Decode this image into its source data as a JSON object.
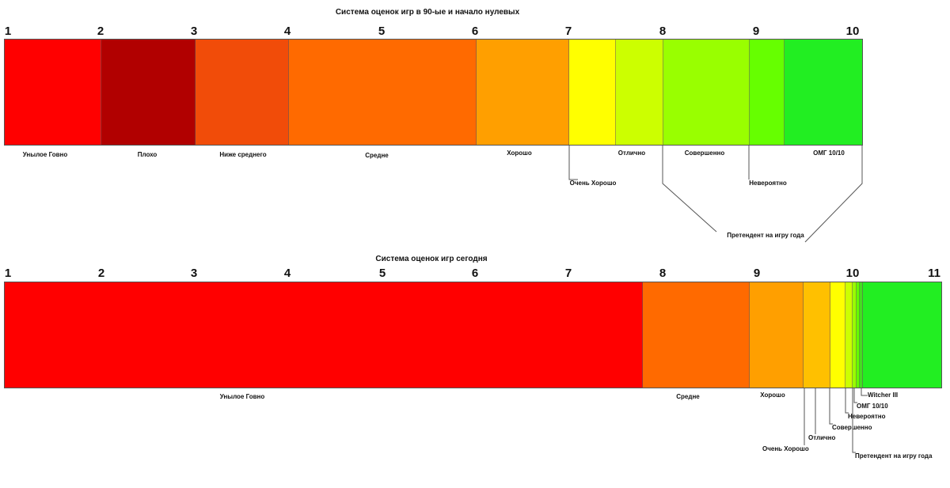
{
  "diagram_data": {
    "top": {
      "title": "Система оценок игр в 90-ые и начало нулевых",
      "scale": [
        "1",
        "2",
        "3",
        "4",
        "5",
        "6",
        "7",
        "8",
        "9",
        "10"
      ],
      "segments": [
        {
          "label": "Унылое Говно",
          "color": "#ff0000"
        },
        {
          "label": "Плохо",
          "color": "#b10000"
        },
        {
          "label": "Ниже среднего",
          "color": "#f14c09"
        },
        {
          "label": "Средне",
          "color": "#ff6a00"
        },
        {
          "label": "Хорошо",
          "color": "#ff9f00"
        },
        {
          "label": "Очень Хорошо",
          "color": "#ffff00"
        },
        {
          "label": "Отлично",
          "color": "#ccff00"
        },
        {
          "label": "Совершенно",
          "color": "#99ff00"
        },
        {
          "label": "Невероятно",
          "color": "#66ff00"
        },
        {
          "label": "ОМГ 10/10",
          "color": "#22ee22"
        }
      ],
      "bracket_label": "Претендент на игру года"
    },
    "bottom": {
      "title": "Система оценок игр сегодня",
      "scale": [
        "1",
        "2",
        "3",
        "4",
        "5",
        "6",
        "7",
        "8",
        "9",
        "10",
        "11"
      ],
      "segments": [
        {
          "label": "Унылое Говно",
          "color": "#ff0000"
        },
        {
          "label": "Средне",
          "color": "#ff6a00"
        },
        {
          "label": "Хорошо",
          "color": "#ff9f00"
        },
        {
          "label": "Очень Хорошо",
          "color": "#ffc000"
        },
        {
          "label": "Отлично",
          "color": "#ffff00"
        },
        {
          "label": "Совершенно",
          "color": "#ccff00"
        },
        {
          "label": "Невероятно",
          "color": "#99ff00"
        },
        {
          "label": "ОМГ 10/10",
          "color": "#66ff00"
        },
        {
          "label": "Претендент на игру года",
          "color": "#44dd22"
        },
        {
          "label": "Witcher III",
          "color": "#22ee22"
        }
      ]
    }
  }
}
